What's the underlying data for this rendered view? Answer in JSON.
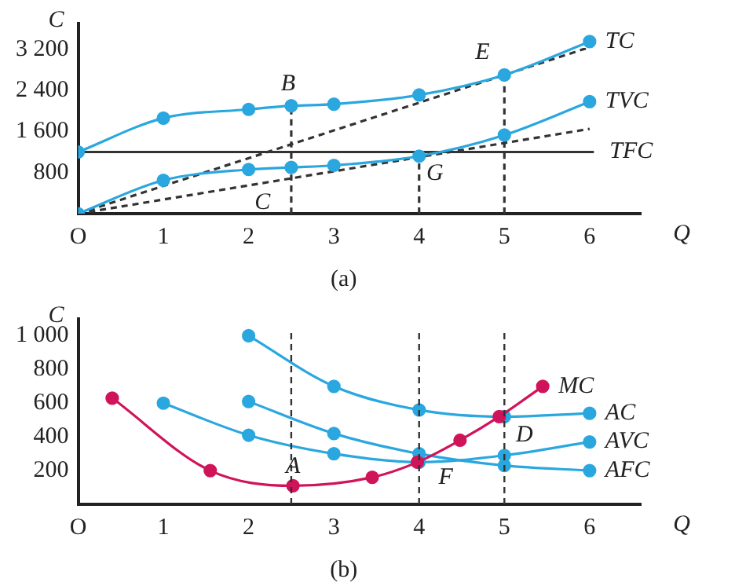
{
  "chart_data": [
    {
      "type": "line",
      "xlabel": "Q",
      "ylabel": "C",
      "annotations": [
        "(a)",
        {
          "text": "B",
          "x": 2.5,
          "y": 2100
        },
        {
          "text": "E",
          "x": 5,
          "y": 2700
        },
        {
          "text": "C",
          "x": 2.2,
          "y": 610
        },
        {
          "text": "G",
          "x": 4,
          "y": 1120
        }
      ],
      "x": [
        0,
        1,
        2,
        2.5,
        3,
        4,
        5,
        6
      ],
      "marker": "circle",
      "grid": false,
      "legend": false,
      "series": [
        {
          "name": "TC",
          "color": "#2aa7df",
          "values": [
            1200,
            1860,
            2030,
            2100,
            2130,
            2310,
            2700,
            3350
          ]
        },
        {
          "name": "TVC",
          "color": "#2aa7df",
          "values": [
            0,
            650,
            860,
            900,
            940,
            1120,
            1530,
            2180
          ]
        },
        {
          "name": "TFC",
          "color": "#333333",
          "marker": "none",
          "x": [
            0,
            6.05
          ],
          "values": [
            1200,
            1200
          ]
        },
        {
          "color": "#333333",
          "marker": "none",
          "line_style": "dashed",
          "x": [
            0,
            6
          ],
          "values": [
            0,
            3240
          ]
        },
        {
          "color": "#333333",
          "marker": "none",
          "line_style": "dashed",
          "x": [
            0,
            6
          ],
          "values": [
            0,
            1650
          ]
        },
        {
          "color": "#333333",
          "marker": "none",
          "line_style": "dashed",
          "x": [
            2.5,
            2.5
          ],
          "values": [
            0,
            2100
          ]
        },
        {
          "color": "#333333",
          "marker": "none",
          "line_style": "dashed",
          "x": [
            4,
            4
          ],
          "values": [
            0,
            1120
          ]
        },
        {
          "color": "#333333",
          "marker": "none",
          "line_style": "dashed",
          "x": [
            5,
            5
          ],
          "values": [
            0,
            2700
          ]
        }
      ],
      "xlim": [
        0,
        6.6
      ],
      "xticks": [
        {
          "value": 0,
          "label": "O"
        },
        1,
        2,
        3,
        4,
        5,
        6
      ],
      "ylim": [
        0,
        3700
      ],
      "yticks": [
        {
          "value": 800,
          "label": "800"
        },
        {
          "value": 1600,
          "label": "1 600"
        },
        {
          "value": 2400,
          "label": "2 400"
        },
        {
          "value": 3200,
          "label": "3 200"
        }
      ]
    },
    {
      "type": "line",
      "xlabel": "Q",
      "ylabel": "C",
      "annotations": [
        "(b)",
        {
          "text": "A",
          "x": 2.52,
          "y": 110
        },
        {
          "text": "F",
          "x": 3.98,
          "y": 250
        },
        {
          "text": "D",
          "x": 4.94,
          "y": 520
        }
      ],
      "marker": "circle",
      "grid": false,
      "legend": false,
      "series": [
        {
          "name": "MC",
          "color": "#d0145a",
          "x": [
            0.4,
            1.55,
            2.52,
            3.45,
            3.98,
            4.48,
            4.94,
            5.45
          ],
          "values": [
            630,
            200,
            110,
            160,
            250,
            380,
            520,
            700
          ]
        },
        {
          "name": "AC",
          "color": "#2aa7df",
          "x": [
            2,
            3,
            4,
            5,
            6
          ],
          "values": [
            1000,
            700,
            560,
            520,
            540
          ]
        },
        {
          "name": "AVC",
          "color": "#2aa7df",
          "x": [
            1,
            2,
            3,
            4,
            5,
            6
          ],
          "values": [
            600,
            410,
            300,
            250,
            290,
            370
          ]
        },
        {
          "name": "AFC",
          "color": "#2aa7df",
          "x": [
            2,
            3,
            4,
            5,
            6
          ],
          "values": [
            610,
            420,
            300,
            230,
            200
          ]
        }
      ],
      "ref_lines": [
        {
          "axis": "x",
          "value": 2.5,
          "color": "#333333",
          "line_style": "dashed"
        },
        {
          "axis": "x",
          "value": 4,
          "color": "#333333",
          "line_style": "dashed"
        },
        {
          "axis": "x",
          "value": 5,
          "color": "#333333",
          "line_style": "dashed"
        }
      ],
      "xlim": [
        0,
        6.6
      ],
      "xticks": [
        {
          "value": 0,
          "label": "O"
        },
        1,
        2,
        3,
        4,
        5,
        6
      ],
      "ylim": [
        0,
        1100
      ],
      "yticks": [
        {
          "value": 200,
          "label": "200"
        },
        {
          "value": 400,
          "label": "400"
        },
        {
          "value": 600,
          "label": "600"
        },
        {
          "value": 800,
          "label": "800"
        },
        {
          "value": 1000,
          "label": "1 000"
        }
      ]
    }
  ]
}
